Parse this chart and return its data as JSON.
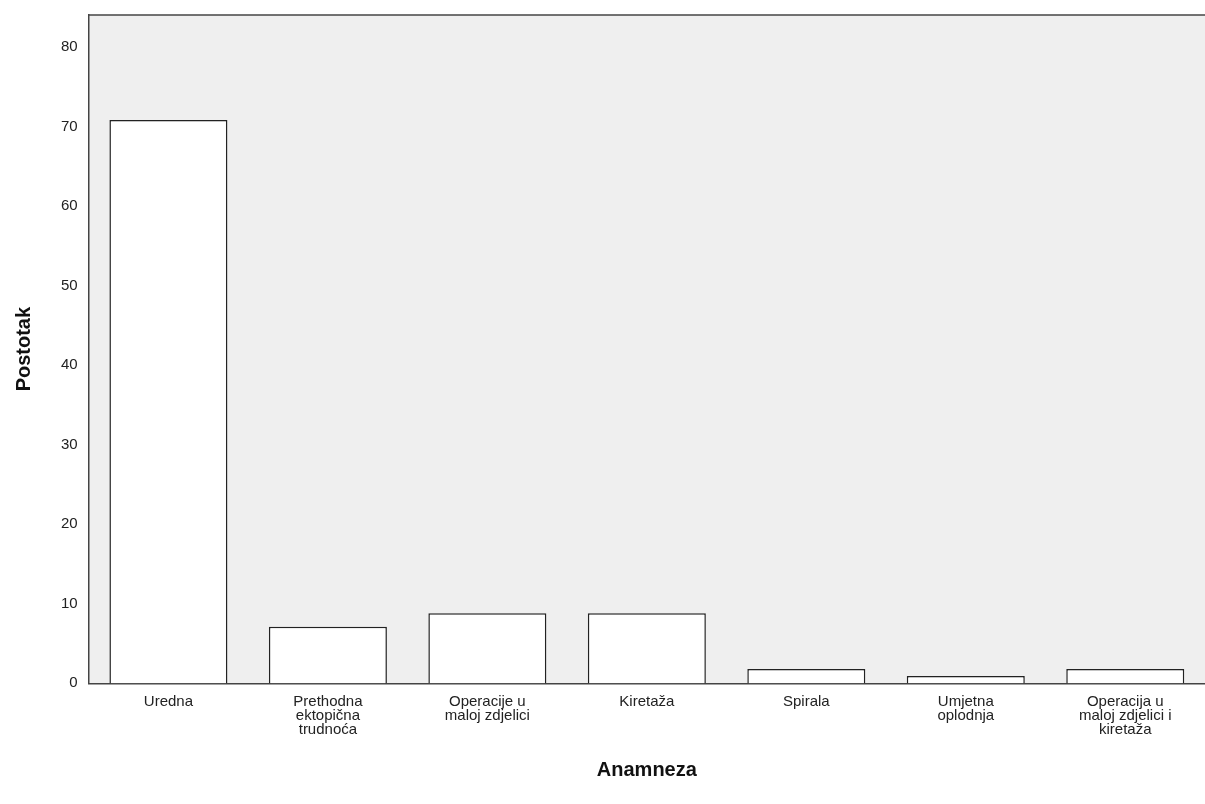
{
  "chart_data": {
    "type": "bar",
    "xlabel": "Anamneza",
    "ylabel": "Postotak",
    "categories": [
      "Uredna",
      "Prethodna\nektopična\ntrudnoća",
      "Operacije u\nmaloj zdjelici",
      "Kiretaža",
      "Spirala",
      "Umjetna\noplodnja",
      "Operacija u\nmaloj zdjelici i\nkiretaža"
    ],
    "values": [
      70.8,
      7.1,
      8.8,
      8.8,
      1.8,
      0.9,
      1.8
    ],
    "color": "#ffffff",
    "ylim": [
      0,
      84
    ],
    "yticks": [
      0,
      10,
      20,
      30,
      40,
      50,
      60,
      70,
      80
    ],
    "grid": false,
    "legend": false
  }
}
